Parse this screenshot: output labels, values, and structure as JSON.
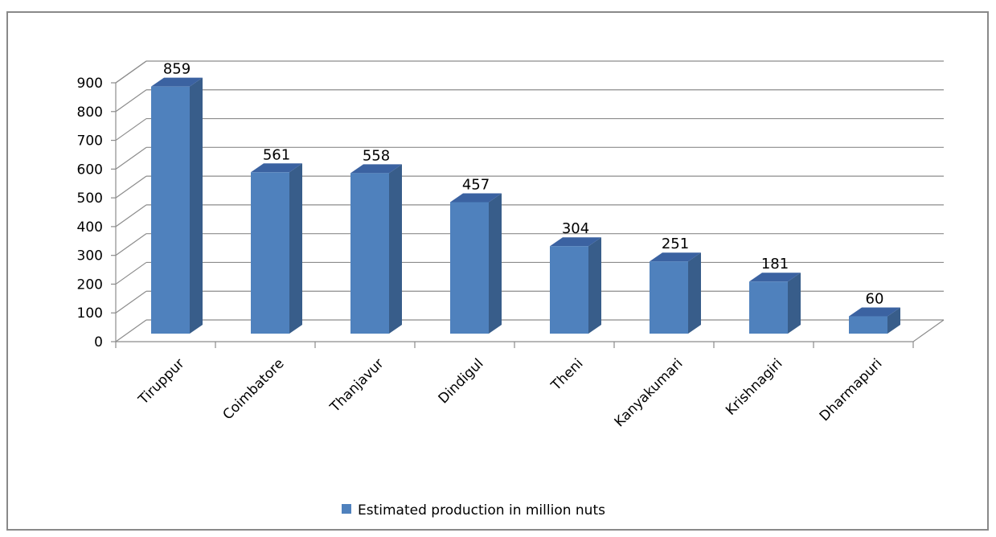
{
  "chart_data": {
    "type": "bar",
    "style": "3d-column",
    "categories": [
      "Tiruppur",
      "Coimbatore",
      "Thanjavur",
      "Dindigul",
      "Theni",
      "Kanyakumari",
      "Krishnagiri",
      "Dharmapuri"
    ],
    "series": [
      {
        "name": "Estimated production in million nuts",
        "values": [
          859,
          561,
          558,
          457,
          304,
          251,
          181,
          60
        ]
      }
    ],
    "yticks": [
      0,
      100,
      200,
      300,
      400,
      500,
      600,
      700,
      800,
      900
    ],
    "ylim": [
      0,
      900
    ],
    "grid": true,
    "legend_position": "bottom",
    "data_labels": true,
    "colors": {
      "bar_front": "#4F81BD",
      "bar_side": "#385D8A",
      "bar_top": "#3B62A1",
      "grid": "#8C8C8C"
    }
  }
}
